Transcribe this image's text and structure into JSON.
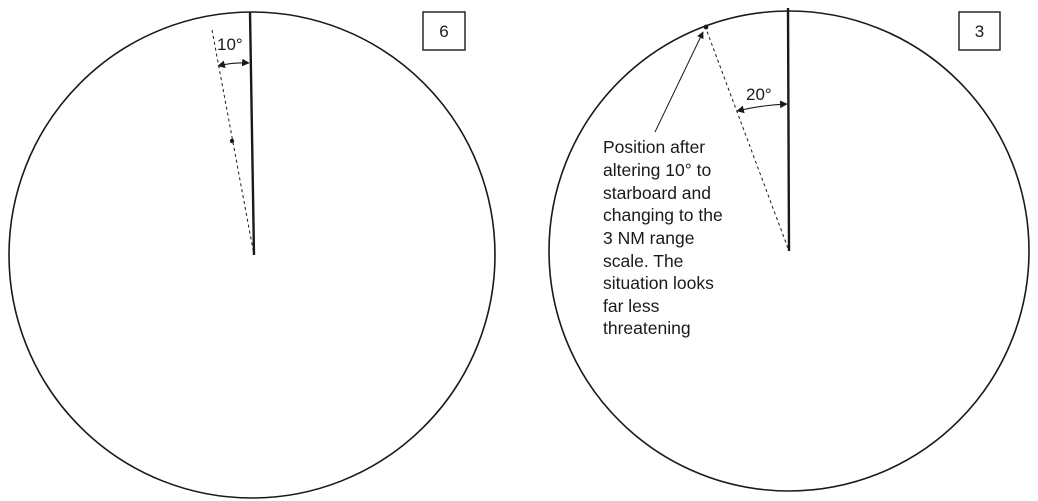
{
  "panels": [
    {
      "range_scale": "6",
      "angle_label": "10°",
      "caption_lines": []
    },
    {
      "range_scale": "3",
      "angle_label": "20°",
      "caption_lines": [
        "Position after",
        "altering 10° to",
        "starboard and",
        "changing to the",
        "3 NM range",
        "scale. The",
        "situation looks",
        "far less",
        "threatening"
      ]
    }
  ]
}
